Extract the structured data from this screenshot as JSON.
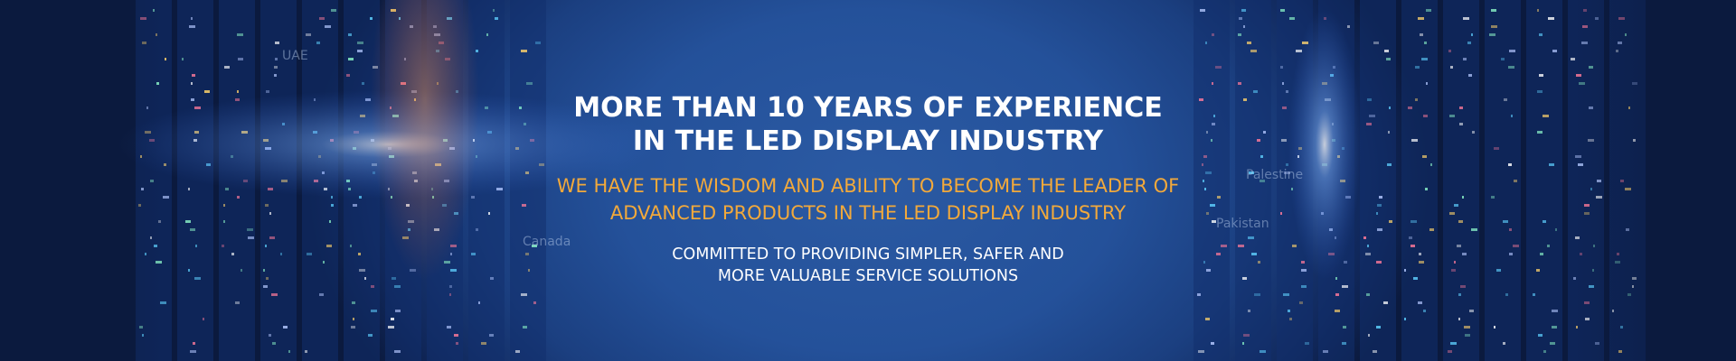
{
  "banner": {
    "headline": [
      "MORE THAN 10 YEARS OF EXPERIENCE",
      "IN THE LED DISPLAY INDUSTRY"
    ],
    "subheadline": [
      "WE HAVE THE WISDOM AND ABILITY TO BECOME THE LEADER OF",
      "ADVANCED PRODUCTS IN THE LED DISPLAY INDUSTRY"
    ],
    "tagline": [
      "COMMITTED TO PROVIDING SIMPLER, SAFER AND",
      "MORE VALUABLE SERVICE SOLUTIONS"
    ]
  },
  "background_labels": [
    "UAE",
    "Canada",
    "Palestine",
    "Pakistan"
  ]
}
